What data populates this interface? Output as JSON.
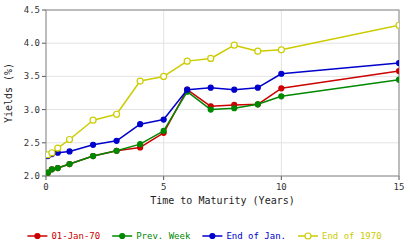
{
  "chart_data": {
    "type": "line",
    "xlabel": "Time to Maturity (Years)",
    "ylabel": "Yields (%)",
    "x": [
      0.08,
      0.25,
      0.5,
      1.0,
      2.0,
      3.0,
      4.0,
      5.0,
      6.0,
      7.0,
      8.0,
      9.0,
      10.0,
      15.0
    ],
    "xlim": [
      0,
      15
    ],
    "ylim": [
      2.0,
      4.5
    ],
    "xticks": [
      0,
      5,
      10,
      15
    ],
    "yticks": [
      {
        "value": 2.0,
        "label": "2.0"
      },
      2.5,
      {
        "value": 3.0,
        "label": "3.0"
      },
      3.5,
      {
        "value": 4.0,
        "label": "4.0"
      },
      4.5
    ],
    "grid": true,
    "legend": "bottom",
    "series": [
      {
        "name": "01-Jan-70",
        "color": "#cc0000",
        "marker": "circle",
        "values": [
          2.05,
          2.1,
          2.12,
          2.18,
          2.3,
          2.38,
          2.43,
          2.65,
          3.3,
          3.05,
          3.07,
          3.08,
          3.32,
          3.58
        ]
      },
      {
        "name": "Prev. Week",
        "color": "#008800",
        "marker": "circle",
        "values": [
          2.05,
          2.1,
          2.12,
          2.18,
          2.3,
          2.38,
          2.48,
          2.68,
          3.27,
          3.0,
          3.02,
          3.08,
          3.2,
          3.45
        ]
      },
      {
        "name": "End of Jan.",
        "color": "#0000cc",
        "marker": "circle",
        "values": [
          2.3,
          2.33,
          2.35,
          2.37,
          2.47,
          2.53,
          2.78,
          2.85,
          3.3,
          3.33,
          3.3,
          3.33,
          3.54,
          3.7
        ]
      },
      {
        "name": "End of 1970",
        "color": "#cccc00",
        "marker": "open-circle",
        "values": [
          2.32,
          2.35,
          2.42,
          2.55,
          2.84,
          2.93,
          3.43,
          3.5,
          3.73,
          3.77,
          3.97,
          3.88,
          3.9,
          4.27
        ]
      }
    ]
  }
}
